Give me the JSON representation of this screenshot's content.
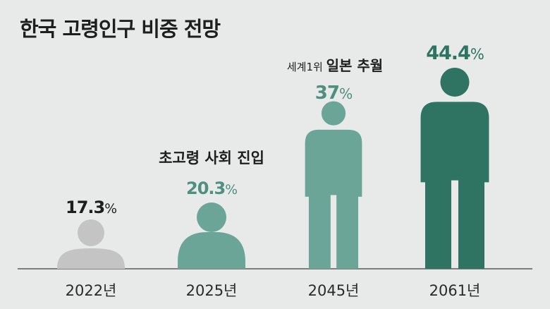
{
  "title": "한국 고령인구 비중 전망",
  "colors": {
    "background": "#e8eaea",
    "gray": "#c4c4c4",
    "light_teal": "#6aa597",
    "dark_teal": "#2f7462",
    "text": "#1e1e1e"
  },
  "chart_data": {
    "type": "bar",
    "title": "한국 고령인구 비중 전망",
    "unit": "%",
    "categories": [
      "2022년",
      "2025년",
      "2045년",
      "2061년"
    ],
    "values": [
      17.3,
      20.3,
      37,
      44.4
    ],
    "value_labels": [
      "17.3",
      "20.3",
      "37",
      "44.4"
    ],
    "annotations": [
      {
        "category": "2025년",
        "text": "초고령 사회 진입"
      },
      {
        "category": "2045년",
        "prefix": "세계1위",
        "text": "일본 추월"
      }
    ],
    "bar_colors": [
      "#c4c4c4",
      "#6aa597",
      "#6aa597",
      "#2f7462"
    ],
    "label_colors": [
      "#1e1e1e",
      "#4e8f80",
      "#4e8f80",
      "#2f7462"
    ],
    "grid": false,
    "legend": "none"
  }
}
